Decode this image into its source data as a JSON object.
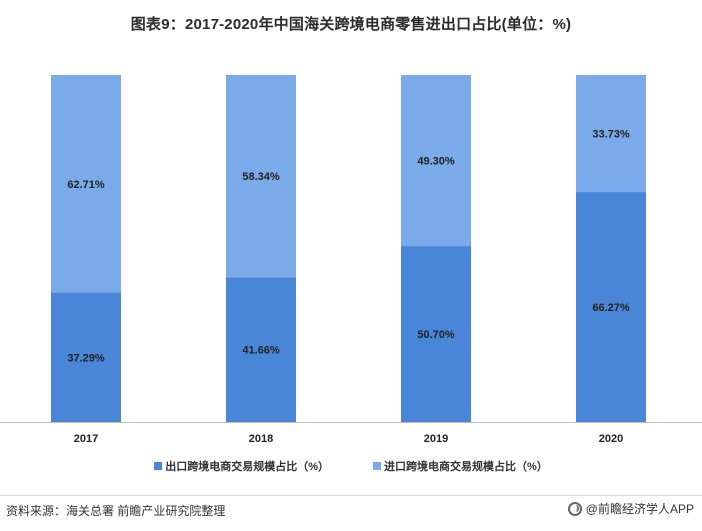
{
  "chart_data": {
    "type": "bar",
    "stacked": true,
    "percent": true,
    "title": "图表9：2017-2020年中国海关跨境电商零售进出口占比(单位：%)",
    "categories": [
      "2017",
      "2018",
      "2019",
      "2020"
    ],
    "series": [
      {
        "name": "出口跨境电商交易规模占比（%）",
        "values": [
          37.29,
          41.66,
          50.7,
          66.27
        ],
        "labels": [
          "37.29%",
          "41.66%",
          "50.70%",
          "66.27%"
        ],
        "color": "#4a86d8"
      },
      {
        "name": "进口跨境电商交易规模占比（%）",
        "values": [
          62.71,
          58.34,
          49.3,
          33.73
        ],
        "labels": [
          "62.71%",
          "58.34%",
          "49.30%",
          "33.73%"
        ],
        "color": "#7aaaea"
      }
    ],
    "ylim": [
      0,
      100
    ],
    "grid": false,
    "legend": "bottom"
  },
  "footer": {
    "source": "资料来源：海关总署 前瞻产业研究院整理",
    "brand": "@前瞻经济学人APP"
  }
}
